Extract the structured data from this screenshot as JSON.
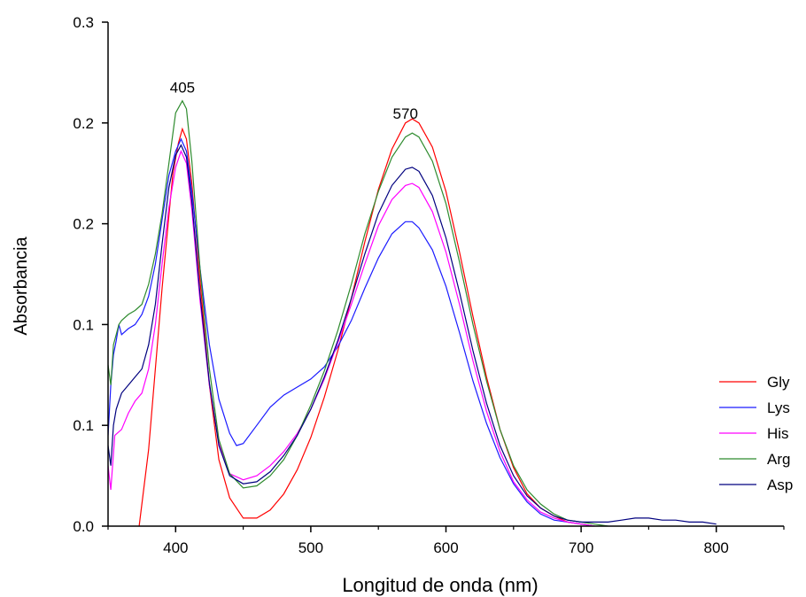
{
  "chart_data": {
    "type": "line",
    "title": "",
    "xlabel": "Longitud de onda (nm)",
    "ylabel": "Absorbancia",
    "xlim": [
      350,
      850
    ],
    "ylim": [
      0.0,
      0.25
    ],
    "x_ticks": [
      400,
      500,
      600,
      700,
      800
    ],
    "y_ticks": [
      0.0,
      0.05,
      0.1,
      0.15,
      0.2,
      0.25
    ],
    "y_tick_labels": [
      "0.0",
      "0.1",
      "0.1",
      "0.2",
      "0.2",
      "0.3"
    ],
    "grid": false,
    "legend_position": "right",
    "annotations": [
      {
        "text": "405",
        "x": 405,
        "y": 0.215
      },
      {
        "text": "570",
        "x": 570,
        "y": 0.202
      }
    ],
    "series": [
      {
        "name": "Gly",
        "color": "#ff0000",
        "points": [
          [
            373,
            0.0
          ],
          [
            380,
            0.038
          ],
          [
            390,
            0.118
          ],
          [
            398,
            0.175
          ],
          [
            402,
            0.19
          ],
          [
            405,
            0.197
          ],
          [
            408,
            0.192
          ],
          [
            412,
            0.17
          ],
          [
            418,
            0.122
          ],
          [
            425,
            0.07
          ],
          [
            432,
            0.033
          ],
          [
            440,
            0.014
          ],
          [
            450,
            0.004
          ],
          [
            460,
            0.004
          ],
          [
            470,
            0.008
          ],
          [
            480,
            0.016
          ],
          [
            490,
            0.028
          ],
          [
            500,
            0.044
          ],
          [
            510,
            0.064
          ],
          [
            520,
            0.087
          ],
          [
            530,
            0.113
          ],
          [
            540,
            0.141
          ],
          [
            550,
            0.167
          ],
          [
            560,
            0.187
          ],
          [
            570,
            0.2
          ],
          [
            575,
            0.202
          ],
          [
            580,
            0.2
          ],
          [
            590,
            0.188
          ],
          [
            600,
            0.166
          ],
          [
            610,
            0.136
          ],
          [
            620,
            0.104
          ],
          [
            630,
            0.074
          ],
          [
            640,
            0.048
          ],
          [
            650,
            0.029
          ],
          [
            660,
            0.016
          ],
          [
            670,
            0.009
          ],
          [
            680,
            0.005
          ],
          [
            690,
            0.002
          ],
          [
            700,
            0.001
          ],
          [
            710,
            0.0
          ]
        ]
      },
      {
        "name": "Lys",
        "color": "#1a1aff",
        "points": [
          [
            350,
            0.045
          ],
          [
            352,
            0.07
          ],
          [
            354,
            0.085
          ],
          [
            356,
            0.092
          ],
          [
            358,
            0.1
          ],
          [
            360,
            0.095
          ],
          [
            365,
            0.098
          ],
          [
            370,
            0.1
          ],
          [
            375,
            0.105
          ],
          [
            380,
            0.114
          ],
          [
            385,
            0.13
          ],
          [
            390,
            0.152
          ],
          [
            395,
            0.174
          ],
          [
            400,
            0.186
          ],
          [
            404,
            0.192
          ],
          [
            408,
            0.186
          ],
          [
            412,
            0.166
          ],
          [
            418,
            0.128
          ],
          [
            425,
            0.09
          ],
          [
            432,
            0.063
          ],
          [
            440,
            0.046
          ],
          [
            445,
            0.04
          ],
          [
            450,
            0.041
          ],
          [
            460,
            0.05
          ],
          [
            470,
            0.059
          ],
          [
            480,
            0.065
          ],
          [
            490,
            0.069
          ],
          [
            500,
            0.073
          ],
          [
            510,
            0.079
          ],
          [
            520,
            0.089
          ],
          [
            530,
            0.102
          ],
          [
            540,
            0.118
          ],
          [
            550,
            0.133
          ],
          [
            560,
            0.145
          ],
          [
            570,
            0.151
          ],
          [
            575,
            0.151
          ],
          [
            580,
            0.148
          ],
          [
            590,
            0.137
          ],
          [
            600,
            0.119
          ],
          [
            610,
            0.096
          ],
          [
            620,
            0.072
          ],
          [
            630,
            0.051
          ],
          [
            640,
            0.034
          ],
          [
            650,
            0.021
          ],
          [
            660,
            0.012
          ],
          [
            670,
            0.006
          ],
          [
            680,
            0.003
          ],
          [
            690,
            0.002
          ],
          [
            700,
            0.001
          ],
          [
            710,
            0.0
          ]
        ]
      },
      {
        "name": "His",
        "color": "#ff00ff",
        "points": [
          [
            350,
            0.03
          ],
          [
            352,
            0.018
          ],
          [
            355,
            0.045
          ],
          [
            360,
            0.048
          ],
          [
            365,
            0.056
          ],
          [
            370,
            0.062
          ],
          [
            375,
            0.066
          ],
          [
            380,
            0.078
          ],
          [
            385,
            0.1
          ],
          [
            390,
            0.13
          ],
          [
            395,
            0.158
          ],
          [
            400,
            0.178
          ],
          [
            404,
            0.186
          ],
          [
            408,
            0.18
          ],
          [
            412,
            0.157
          ],
          [
            418,
            0.112
          ],
          [
            425,
            0.07
          ],
          [
            432,
            0.041
          ],
          [
            440,
            0.026
          ],
          [
            450,
            0.023
          ],
          [
            460,
            0.025
          ],
          [
            470,
            0.03
          ],
          [
            480,
            0.037
          ],
          [
            490,
            0.046
          ],
          [
            500,
            0.058
          ],
          [
            510,
            0.073
          ],
          [
            520,
            0.091
          ],
          [
            530,
            0.11
          ],
          [
            540,
            0.13
          ],
          [
            550,
            0.149
          ],
          [
            560,
            0.162
          ],
          [
            570,
            0.169
          ],
          [
            575,
            0.17
          ],
          [
            580,
            0.168
          ],
          [
            590,
            0.156
          ],
          [
            600,
            0.136
          ],
          [
            610,
            0.11
          ],
          [
            620,
            0.082
          ],
          [
            630,
            0.057
          ],
          [
            640,
            0.037
          ],
          [
            650,
            0.022
          ],
          [
            660,
            0.013
          ],
          [
            670,
            0.007
          ],
          [
            680,
            0.004
          ],
          [
            690,
            0.002
          ],
          [
            700,
            0.001
          ],
          [
            710,
            0.0
          ]
        ]
      },
      {
        "name": "Arg",
        "color": "#2e8b2e",
        "points": [
          [
            350,
            0.08
          ],
          [
            352,
            0.07
          ],
          [
            354,
            0.09
          ],
          [
            356,
            0.095
          ],
          [
            358,
            0.1
          ],
          [
            360,
            0.102
          ],
          [
            365,
            0.105
          ],
          [
            370,
            0.107
          ],
          [
            375,
            0.11
          ],
          [
            380,
            0.12
          ],
          [
            385,
            0.135
          ],
          [
            390,
            0.155
          ],
          [
            395,
            0.18
          ],
          [
            400,
            0.205
          ],
          [
            405,
            0.211
          ],
          [
            408,
            0.207
          ],
          [
            412,
            0.181
          ],
          [
            418,
            0.128
          ],
          [
            425,
            0.078
          ],
          [
            432,
            0.043
          ],
          [
            440,
            0.026
          ],
          [
            450,
            0.019
          ],
          [
            460,
            0.02
          ],
          [
            470,
            0.025
          ],
          [
            480,
            0.033
          ],
          [
            490,
            0.045
          ],
          [
            500,
            0.06
          ],
          [
            510,
            0.077
          ],
          [
            520,
            0.097
          ],
          [
            530,
            0.12
          ],
          [
            540,
            0.145
          ],
          [
            550,
            0.166
          ],
          [
            560,
            0.183
          ],
          [
            570,
            0.193
          ],
          [
            575,
            0.195
          ],
          [
            580,
            0.193
          ],
          [
            590,
            0.181
          ],
          [
            600,
            0.16
          ],
          [
            610,
            0.131
          ],
          [
            620,
            0.1
          ],
          [
            630,
            0.072
          ],
          [
            640,
            0.048
          ],
          [
            650,
            0.03
          ],
          [
            660,
            0.018
          ],
          [
            670,
            0.011
          ],
          [
            680,
            0.006
          ],
          [
            690,
            0.003
          ],
          [
            700,
            0.002
          ],
          [
            710,
            0.001
          ],
          [
            720,
            0.0
          ]
        ]
      },
      {
        "name": "Asp",
        "color": "#00007f",
        "points": [
          [
            350,
            0.04
          ],
          [
            352,
            0.03
          ],
          [
            354,
            0.05
          ],
          [
            356,
            0.058
          ],
          [
            358,
            0.062
          ],
          [
            360,
            0.066
          ],
          [
            365,
            0.07
          ],
          [
            370,
            0.074
          ],
          [
            375,
            0.078
          ],
          [
            380,
            0.09
          ],
          [
            385,
            0.11
          ],
          [
            390,
            0.14
          ],
          [
            395,
            0.168
          ],
          [
            400,
            0.184
          ],
          [
            404,
            0.189
          ],
          [
            408,
            0.183
          ],
          [
            412,
            0.161
          ],
          [
            418,
            0.115
          ],
          [
            425,
            0.071
          ],
          [
            432,
            0.04
          ],
          [
            440,
            0.025
          ],
          [
            450,
            0.021
          ],
          [
            460,
            0.022
          ],
          [
            470,
            0.027
          ],
          [
            480,
            0.035
          ],
          [
            490,
            0.045
          ],
          [
            500,
            0.058
          ],
          [
            510,
            0.074
          ],
          [
            520,
            0.092
          ],
          [
            530,
            0.113
          ],
          [
            540,
            0.135
          ],
          [
            550,
            0.155
          ],
          [
            560,
            0.169
          ],
          [
            570,
            0.177
          ],
          [
            575,
            0.178
          ],
          [
            580,
            0.176
          ],
          [
            590,
            0.164
          ],
          [
            600,
            0.143
          ],
          [
            610,
            0.116
          ],
          [
            620,
            0.087
          ],
          [
            630,
            0.061
          ],
          [
            640,
            0.04
          ],
          [
            650,
            0.025
          ],
          [
            660,
            0.015
          ],
          [
            670,
            0.009
          ],
          [
            680,
            0.005
          ],
          [
            690,
            0.003
          ],
          [
            700,
            0.002
          ],
          [
            710,
            0.002
          ],
          [
            720,
            0.002
          ],
          [
            730,
            0.003
          ],
          [
            740,
            0.004
          ],
          [
            750,
            0.004
          ],
          [
            760,
            0.003
          ],
          [
            770,
            0.003
          ],
          [
            780,
            0.002
          ],
          [
            790,
            0.002
          ],
          [
            800,
            0.001
          ]
        ]
      }
    ]
  }
}
